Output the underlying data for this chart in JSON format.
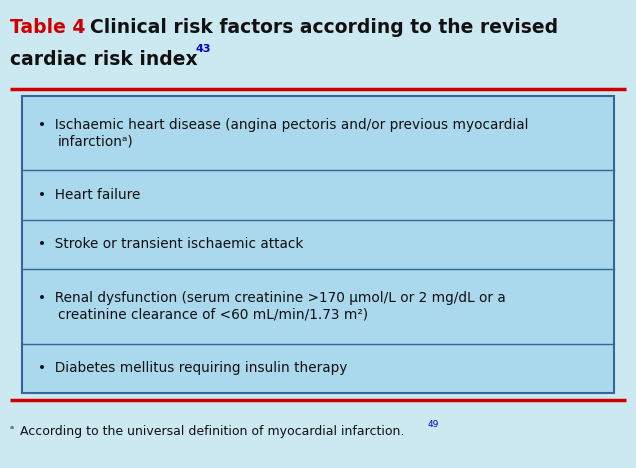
{
  "title_table": "Table 4",
  "title_rest": "Clinical risk factors according to the revised",
  "title_line2": "cardiac risk index",
  "title_superscript": "43",
  "background_color": "#cce8f0",
  "table_bg_color": "#aad8ec",
  "table_border_color": "#336699",
  "red_line_color": "#cc0000",
  "title_red_color": "#cc0000",
  "title_black_color": "#111111",
  "superscript_color": "#0000cc",
  "footnote_superscript_color": "#0000cc",
  "footnote_text": "According to the universal definition of myocardial infarction.",
  "footnote_super": "49",
  "rows": [
    [
      "Ischaemic heart disease (angina pectoris and/or previous myocardial",
      "infarctionᵃ)"
    ],
    [
      "Heart failure"
    ],
    [
      "Stroke or transient ischaemic attack"
    ],
    [
      "Renal dysfunction (serum creatinine >170 μmol/L or 2 mg/dL or a",
      "creatinine clearance of <60 mL/min/1.73 m²)"
    ],
    [
      "Diabetes mellitus requiring insulin therapy"
    ]
  ]
}
